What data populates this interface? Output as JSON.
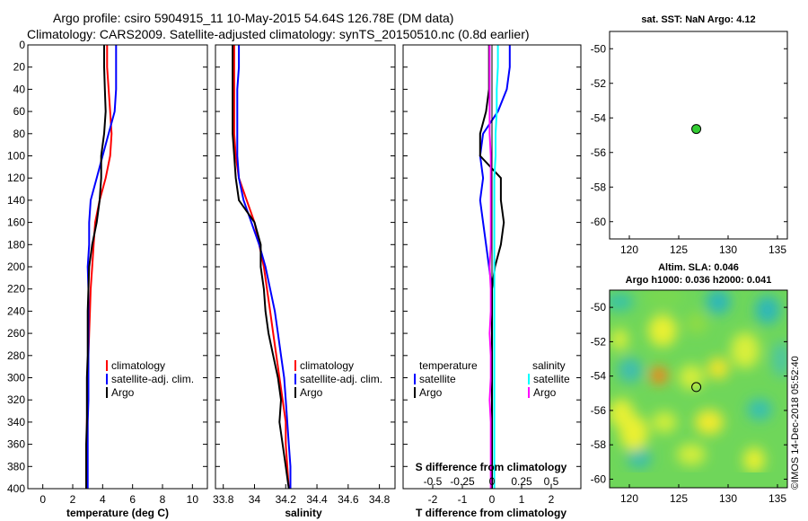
{
  "title": {
    "line1": "Argo profile: csiro 5904915_11 10-May-2015 54.64S 126.78E (DM data)",
    "line2": "Climatology: CARS2009. Satellite-adjusted climatology: synTS_20150510.nc (0.8d earlier)"
  },
  "colors": {
    "climatology": "#ff0000",
    "satellite": "#0000ff",
    "argo": "#000000",
    "salinity_sat": "#00ffff",
    "salinity_argo": "#ff00ff"
  },
  "watermark": "©IMOS 14-Dec-2018 05:52:40",
  "chart_data": [
    {
      "id": "temperature",
      "type": "line",
      "xlabel": "temperature (deg C)",
      "xlim": [
        -1,
        11
      ],
      "xticks": [
        0,
        2,
        4,
        6,
        8,
        10
      ],
      "xticklabels": [
        "0",
        "2",
        "4",
        "6",
        "8",
        "10"
      ],
      "ylim": [
        0,
        400
      ],
      "yticks": [
        0,
        20,
        40,
        60,
        80,
        100,
        120,
        140,
        160,
        180,
        200,
        220,
        240,
        260,
        280,
        300,
        320,
        340,
        360,
        380,
        400
      ],
      "legend": [
        "climatology",
        "satellite-adj. clim.",
        "Argo"
      ],
      "series": [
        {
          "name": "climatology",
          "color": "#ff0000",
          "x": [
            4.3,
            4.3,
            4.4,
            4.5,
            4.6,
            4.5,
            4.2,
            3.8,
            3.5,
            3.4,
            3.3,
            3.2,
            3.15,
            3.1,
            3.05,
            3.0,
            3.0,
            2.95,
            2.95,
            2.9,
            2.9
          ],
          "y": [
            0,
            20,
            40,
            60,
            80,
            100,
            120,
            140,
            160,
            180,
            200,
            220,
            240,
            260,
            280,
            300,
            320,
            340,
            360,
            380,
            400
          ]
        },
        {
          "name": "satellite-adj. clim.",
          "color": "#0000ff",
          "x": [
            4.9,
            4.9,
            4.9,
            4.8,
            4.4,
            4.0,
            3.6,
            3.2,
            3.1,
            3.1,
            3.0,
            3.05,
            3.05,
            3.05,
            3.05,
            3.05,
            3.05,
            3.0,
            3.0,
            3.0,
            3.0
          ],
          "y": [
            0,
            20,
            40,
            60,
            80,
            100,
            120,
            140,
            160,
            180,
            200,
            220,
            240,
            260,
            280,
            300,
            320,
            340,
            360,
            380,
            400
          ]
        },
        {
          "name": "Argo",
          "color": "#000000",
          "x": [
            4.1,
            4.1,
            4.15,
            4.2,
            4.1,
            3.9,
            3.9,
            3.8,
            3.6,
            3.3,
            3.1,
            3.05,
            3.0,
            3.0,
            3.0,
            2.95,
            2.95,
            2.95,
            2.9,
            2.9,
            2.9
          ],
          "y": [
            0,
            20,
            40,
            60,
            80,
            100,
            120,
            140,
            160,
            180,
            200,
            220,
            240,
            260,
            280,
            300,
            320,
            340,
            360,
            380,
            400
          ]
        }
      ]
    },
    {
      "id": "salinity",
      "type": "line",
      "xlabel": "salinity",
      "xlim": [
        33.75,
        34.9
      ],
      "xticks": [
        33.8,
        34.0,
        34.2,
        34.4,
        34.6,
        34.8
      ],
      "xticklabels": [
        "33.8",
        "34",
        "34.2",
        "34.4",
        "34.6",
        "34.8"
      ],
      "ylim": [
        0,
        400
      ],
      "legend": [
        "climatology",
        "satellite-adj. clim.",
        "Argo"
      ],
      "series": [
        {
          "name": "climatology",
          "color": "#ff0000",
          "x": [
            33.87,
            33.87,
            33.87,
            33.87,
            33.87,
            33.88,
            33.9,
            33.95,
            34.0,
            34.03,
            34.06,
            34.08,
            34.1,
            34.12,
            34.14,
            34.16,
            34.18,
            34.2,
            34.2,
            34.21,
            34.22
          ],
          "y": [
            0,
            20,
            40,
            60,
            80,
            100,
            120,
            140,
            160,
            180,
            200,
            220,
            240,
            260,
            280,
            300,
            320,
            340,
            360,
            380,
            400
          ]
        },
        {
          "name": "satellite-adj. clim.",
          "color": "#0000ff",
          "x": [
            33.9,
            33.9,
            33.89,
            33.89,
            33.89,
            33.89,
            33.9,
            33.93,
            33.98,
            34.03,
            34.07,
            34.1,
            34.13,
            34.15,
            34.17,
            34.19,
            34.2,
            34.21,
            34.22,
            34.23,
            34.23
          ],
          "y": [
            0,
            20,
            40,
            60,
            80,
            100,
            120,
            140,
            160,
            180,
            200,
            220,
            240,
            260,
            280,
            300,
            320,
            340,
            360,
            380,
            400
          ]
        },
        {
          "name": "Argo",
          "color": "#000000",
          "x": [
            33.86,
            33.86,
            33.86,
            33.86,
            33.86,
            33.87,
            33.88,
            33.9,
            34.0,
            34.04,
            34.04,
            34.06,
            34.07,
            34.09,
            34.12,
            34.15,
            34.17,
            34.16,
            34.18,
            34.2,
            34.22
          ],
          "y": [
            0,
            20,
            40,
            60,
            80,
            100,
            120,
            140,
            160,
            180,
            200,
            220,
            240,
            260,
            280,
            300,
            320,
            340,
            360,
            380,
            400
          ]
        }
      ]
    },
    {
      "id": "differences",
      "type": "line",
      "xlabel": "T difference from climatology",
      "xlabel2": "S difference from climatology",
      "xlim": [
        -3,
        3
      ],
      "xticks": [
        -2,
        -1,
        0,
        1,
        2
      ],
      "xticklabels": [
        "-2",
        "-1",
        "0",
        "1",
        "2"
      ],
      "xticks2": [
        -0.5,
        -0.25,
        0,
        0.25,
        0.5
      ],
      "xticklabels2": [
        "-0.5",
        "-0.25",
        "0",
        "0.25",
        "0.5"
      ],
      "s_scale": 4,
      "ylim": [
        0,
        400
      ],
      "legend_left_title": "temperature",
      "legend_right_title": "salinity",
      "legend": [
        "satellite",
        "Argo",
        "satellite",
        "Argo"
      ],
      "series": [
        {
          "name": "T satellite",
          "color": "#0000ff",
          "x": [
            0.6,
            0.6,
            0.5,
            0.2,
            -0.3,
            -0.4,
            -0.3,
            -0.4,
            -0.3,
            -0.2,
            -0.1,
            0,
            0,
            0,
            0,
            0,
            0,
            0,
            0,
            0,
            0
          ],
          "y": [
            0,
            20,
            40,
            60,
            80,
            100,
            120,
            140,
            160,
            180,
            200,
            220,
            240,
            260,
            280,
            300,
            320,
            340,
            360,
            380,
            400
          ]
        },
        {
          "name": "T Argo",
          "color": "#000000",
          "x": [
            -0.1,
            -0.1,
            -0.1,
            -0.2,
            -0.4,
            -0.4,
            0.3,
            0.3,
            0.4,
            0.3,
            0.1,
            0,
            0,
            0,
            0,
            0,
            0,
            0,
            0,
            0,
            0
          ],
          "y": [
            0,
            20,
            40,
            60,
            80,
            100,
            120,
            140,
            160,
            180,
            200,
            220,
            240,
            260,
            280,
            300,
            320,
            340,
            360,
            380,
            400
          ]
        },
        {
          "name": "S satellite",
          "color": "#00ffff",
          "x": [
            0.05,
            0.05,
            0.04,
            0.04,
            0.03,
            0.03,
            0.02,
            0.02,
            0.02,
            0.02,
            0.02,
            0.02,
            0.02,
            0.02,
            0.02,
            0.02,
            0.02,
            0.02,
            0.02,
            0.02,
            0.02
          ],
          "y": [
            0,
            20,
            40,
            60,
            80,
            100,
            120,
            140,
            160,
            180,
            200,
            220,
            240,
            260,
            280,
            300,
            320,
            340,
            360,
            380,
            400
          ]
        },
        {
          "name": "S Argo",
          "color": "#ff00ff",
          "x": [
            -0.02,
            -0.02,
            -0.02,
            -0.02,
            -0.02,
            -0.01,
            -0.01,
            -0.01,
            -0.01,
            -0.01,
            -0.02,
            -0.01,
            -0.01,
            -0.02,
            -0.01,
            -0.01,
            -0.02,
            -0.01,
            -0.01,
            -0.01,
            -0.01
          ],
          "y": [
            0,
            20,
            40,
            60,
            80,
            100,
            120,
            140,
            160,
            180,
            200,
            220,
            240,
            260,
            280,
            300,
            320,
            340,
            360,
            380,
            400
          ]
        }
      ]
    },
    {
      "id": "sst_map",
      "type": "scatter",
      "title": "sat. SST: NaN Argo: 4.12",
      "xlim": [
        118,
        136
      ],
      "ylim": [
        -61,
        -49
      ],
      "xticks": [
        120,
        125,
        130,
        135
      ],
      "yticks": [
        -50,
        -52,
        -54,
        -56,
        -58,
        -60
      ],
      "point": {
        "lon": 126.78,
        "lat": -54.64
      }
    },
    {
      "id": "sla_map",
      "type": "heatmap",
      "title1": "Altim. SLA: 0.046",
      "title2": "Argo h1000: 0.036 h2000: 0.041",
      "xlim": [
        118,
        136
      ],
      "ylim": [
        -60.5,
        -49
      ],
      "xticks": [
        120,
        125,
        130,
        135
      ],
      "yticks": [
        -50,
        -52,
        -54,
        -56,
        -58,
        -60
      ],
      "point": {
        "lon": 126.78,
        "lat": -54.64
      }
    }
  ]
}
